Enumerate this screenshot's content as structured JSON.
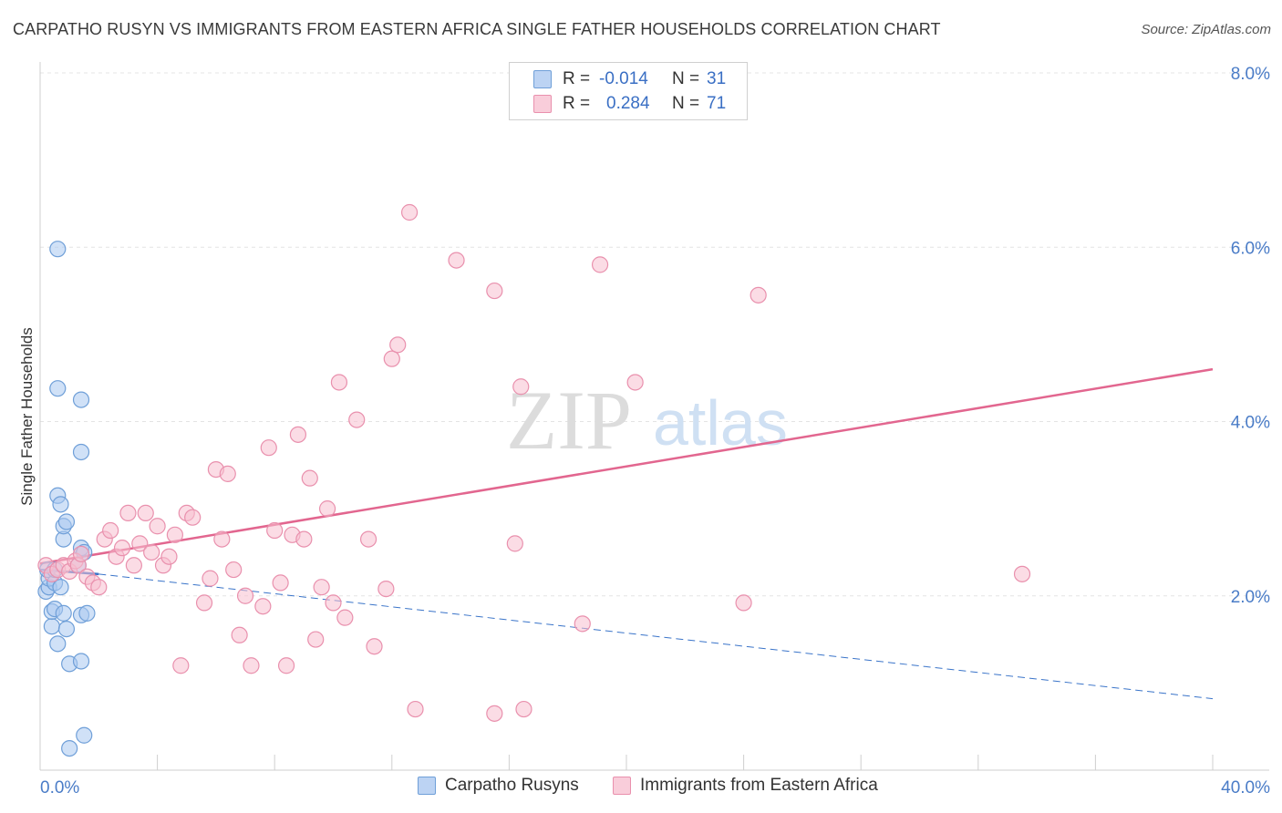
{
  "title": "CARPATHO RUSYN VS IMMIGRANTS FROM EASTERN AFRICA SINGLE FATHER HOUSEHOLDS CORRELATION CHART",
  "source": "Source: ZipAtlas.com",
  "watermark": {
    "zip": "ZIP",
    "atlas": "atlas"
  },
  "legend": {
    "rows": [
      {
        "r_label": "R =",
        "r_value": "-0.014",
        "n_label": "N =",
        "n_value": "31"
      },
      {
        "r_label": "R =",
        "r_value": "0.284",
        "n_label": "N =",
        "n_value": "71"
      }
    ]
  },
  "colors": {
    "blue_fill": "#a9c8f0",
    "blue_stroke": "#6f9fd8",
    "blue_line": "#3a74c9",
    "pink_fill": "#f7bfd0",
    "pink_stroke": "#e990ad",
    "pink_line": "#e2668f",
    "tick_text": "#4a7cc7",
    "grid": "#e4e4e4"
  },
  "chart_data": {
    "type": "scatter",
    "title": "CARPATHO RUSYN VS IMMIGRANTS FROM EASTERN AFRICA SINGLE FATHER HOUSEHOLDS CORRELATION CHART",
    "xlabel": "",
    "ylabel": "Single Father Households",
    "xlim": [
      0,
      40
    ],
    "ylim": [
      0,
      8.0
    ],
    "x_tick_labels": [
      "0.0%",
      "40.0%"
    ],
    "y_ticks": [
      2.0,
      4.0,
      6.0,
      8.0
    ],
    "y_tick_labels": [
      "2.0%",
      "4.0%",
      "6.0%",
      "8.0%"
    ],
    "grid": true,
    "series": [
      {
        "name": "Carpatho Rusyns",
        "color": "#a9c8f0",
        "points": [
          [
            0.2,
            2.05
          ],
          [
            0.3,
            2.1
          ],
          [
            0.3,
            2.2
          ],
          [
            0.25,
            2.3
          ],
          [
            0.4,
            1.65
          ],
          [
            0.4,
            1.82
          ],
          [
            0.5,
            1.85
          ],
          [
            0.5,
            2.15
          ],
          [
            0.5,
            2.3
          ],
          [
            0.6,
            1.45
          ],
          [
            0.7,
            2.1
          ],
          [
            0.8,
            1.8
          ],
          [
            0.9,
            1.62
          ],
          [
            0.6,
            3.15
          ],
          [
            0.6,
            4.38
          ],
          [
            0.6,
            5.98
          ],
          [
            0.7,
            3.05
          ],
          [
            0.8,
            2.65
          ],
          [
            0.8,
            2.8
          ],
          [
            0.9,
            2.85
          ],
          [
            1.0,
            1.22
          ],
          [
            1.0,
            0.25
          ],
          [
            1.3,
            2.35
          ],
          [
            1.4,
            2.55
          ],
          [
            1.4,
            3.65
          ],
          [
            1.5,
            2.5
          ],
          [
            1.4,
            1.25
          ],
          [
            1.4,
            1.78
          ],
          [
            1.5,
            0.4
          ],
          [
            1.4,
            4.25
          ],
          [
            1.6,
            1.8
          ]
        ]
      },
      {
        "name": "Immigrants from Eastern Africa",
        "color": "#f7bfd0",
        "points": [
          [
            0.2,
            2.35
          ],
          [
            0.4,
            2.25
          ],
          [
            0.6,
            2.3
          ],
          [
            0.8,
            2.35
          ],
          [
            1.0,
            2.28
          ],
          [
            1.2,
            2.4
          ],
          [
            1.3,
            2.35
          ],
          [
            1.4,
            2.48
          ],
          [
            1.6,
            2.22
          ],
          [
            1.8,
            2.15
          ],
          [
            2.0,
            2.1
          ],
          [
            2.2,
            2.65
          ],
          [
            2.4,
            2.75
          ],
          [
            2.6,
            2.45
          ],
          [
            2.8,
            2.55
          ],
          [
            3.0,
            2.95
          ],
          [
            3.2,
            2.35
          ],
          [
            3.4,
            2.6
          ],
          [
            3.6,
            2.95
          ],
          [
            3.8,
            2.5
          ],
          [
            4.0,
            2.8
          ],
          [
            4.2,
            2.35
          ],
          [
            4.4,
            2.45
          ],
          [
            4.6,
            2.7
          ],
          [
            4.8,
            1.2
          ],
          [
            5.0,
            2.95
          ],
          [
            5.2,
            2.9
          ],
          [
            5.6,
            1.92
          ],
          [
            5.8,
            2.2
          ],
          [
            6.0,
            3.45
          ],
          [
            6.2,
            2.65
          ],
          [
            6.4,
            3.4
          ],
          [
            6.6,
            2.3
          ],
          [
            6.8,
            1.55
          ],
          [
            7.0,
            2.0
          ],
          [
            7.2,
            1.2
          ],
          [
            7.6,
            1.88
          ],
          [
            7.8,
            3.7
          ],
          [
            8.0,
            2.75
          ],
          [
            8.2,
            2.15
          ],
          [
            8.4,
            1.2
          ],
          [
            8.6,
            2.7
          ],
          [
            8.8,
            3.85
          ],
          [
            9.0,
            2.65
          ],
          [
            9.2,
            3.35
          ],
          [
            9.4,
            1.5
          ],
          [
            9.6,
            2.1
          ],
          [
            9.8,
            3.0
          ],
          [
            10.0,
            1.92
          ],
          [
            10.2,
            4.45
          ],
          [
            10.4,
            1.75
          ],
          [
            10.8,
            4.02
          ],
          [
            11.2,
            2.65
          ],
          [
            11.4,
            1.42
          ],
          [
            11.8,
            2.08
          ],
          [
            12.0,
            4.72
          ],
          [
            12.2,
            4.88
          ],
          [
            12.6,
            6.4
          ],
          [
            14.2,
            5.85
          ],
          [
            12.8,
            0.7
          ],
          [
            15.5,
            5.5
          ],
          [
            15.5,
            0.65
          ],
          [
            16.2,
            2.6
          ],
          [
            16.4,
            4.4
          ],
          [
            16.5,
            0.7
          ],
          [
            18.5,
            1.68
          ],
          [
            19.1,
            5.8
          ],
          [
            20.3,
            4.45
          ],
          [
            24.0,
            1.92
          ],
          [
            24.5,
            5.45
          ],
          [
            33.5,
            2.25
          ]
        ]
      }
    ],
    "trend_lines": [
      {
        "series": "Carpatho Rusyns",
        "x0": 0,
        "y0": 2.3,
        "x1": 2.0,
        "y1": 2.25,
        "extended_to": 40,
        "y_at_end": 0.82
      },
      {
        "series": "Immigrants from Eastern Africa",
        "x0": 0,
        "y0": 2.37,
        "x1": 40,
        "y1": 4.6
      }
    ],
    "legend": [
      "Carpatho Rusyns",
      "Immigrants from Eastern Africa"
    ]
  }
}
